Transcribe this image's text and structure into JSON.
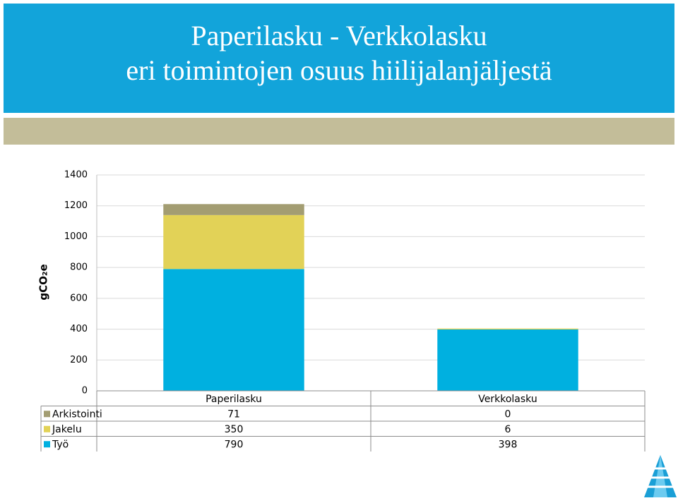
{
  "header": {
    "title_lines": [
      "Paperilasku  - Verkkolasku",
      "eri toimintojen osuus hiilijalanjäljestä"
    ]
  },
  "chart_data": {
    "type": "stacked_bar",
    "y_label": "gCO₂e",
    "categories": [
      "Paperilasku",
      "Verkkolasku"
    ],
    "series": [
      {
        "name": "Arkistointi",
        "color": "#a39d72",
        "values": [
          71,
          0
        ]
      },
      {
        "name": "Jakelu",
        "color": "#e2d257",
        "values": [
          350,
          6
        ]
      },
      {
        "name": "Työ",
        "color": "#00b0e0",
        "values": [
          790,
          398
        ]
      }
    ],
    "ylim": [
      0,
      1400
    ],
    "yticks": [
      0,
      200,
      400,
      600,
      800,
      1000,
      1200,
      1400
    ],
    "grid": true,
    "data_table": true
  }
}
